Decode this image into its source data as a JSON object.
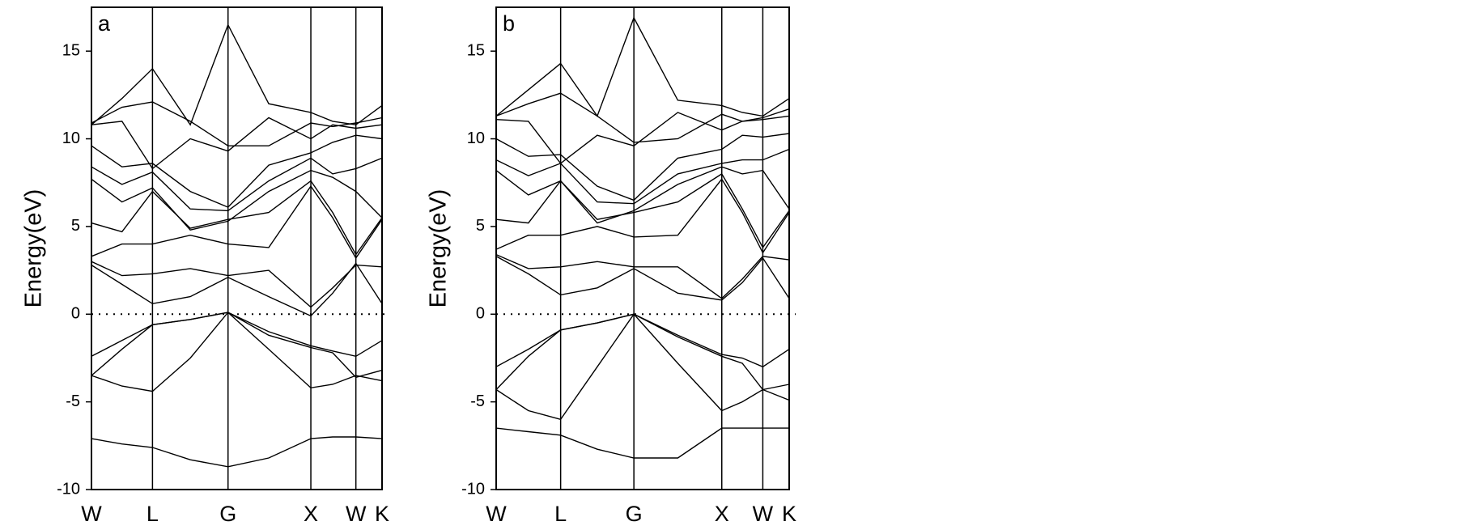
{
  "chart_data": [
    {
      "type": "line",
      "title": "a",
      "ylabel": "Energy(eV)",
      "color": "#000000",
      "xlim": [
        0,
        1
      ],
      "ylim": [
        -10,
        17.5
      ],
      "xticks": [
        {
          "value": 0,
          "label": "W"
        },
        {
          "value": 0.21,
          "label": "L"
        },
        {
          "value": 0.47,
          "label": "G"
        },
        {
          "value": 0.755,
          "label": "X"
        },
        {
          "value": 0.91,
          "label": "W"
        },
        {
          "value": 1,
          "label": "K"
        }
      ],
      "yticks": [
        -10,
        -5,
        0,
        5,
        10,
        15
      ],
      "hline": 0,
      "x": [
        0,
        0.105,
        0.21,
        0.34,
        0.47,
        0.61,
        0.755,
        0.83,
        0.91,
        1
      ],
      "series": [
        {
          "values": [
            -7.1,
            -7.4,
            -7.6,
            -8.3,
            -8.7,
            -8.2,
            -7.1,
            -7.0,
            -7.0,
            -7.1
          ]
        },
        {
          "values": [
            -3.5,
            -4.1,
            -4.4,
            -2.5,
            0.1,
            -2.0,
            -4.2,
            -4.0,
            -3.5,
            -3.8
          ]
        },
        {
          "values": [
            -3.5,
            -2.0,
            -0.6,
            -0.3,
            0.1,
            -1.0,
            -1.8,
            -2.1,
            -2.4,
            -1.5
          ]
        },
        {
          "values": [
            -2.4,
            -1.5,
            -0.6,
            -0.3,
            0.1,
            -1.2,
            -1.9,
            -2.2,
            -3.6,
            -3.2
          ]
        },
        {
          "values": [
            2.8,
            1.7,
            0.6,
            1.0,
            2.1,
            1.0,
            -0.1,
            1.2,
            2.9,
            0.6
          ]
        },
        {
          "values": [
            3.0,
            2.2,
            2.3,
            2.6,
            2.2,
            2.5,
            0.4,
            1.5,
            2.8,
            2.7
          ]
        },
        {
          "values": [
            3.3,
            4.0,
            4.0,
            4.5,
            4.0,
            3.8,
            7.3,
            5.5,
            3.2,
            5.4
          ]
        },
        {
          "values": [
            5.2,
            4.7,
            7.0,
            4.9,
            5.4,
            5.8,
            7.6,
            5.8,
            3.4,
            5.5
          ]
        },
        {
          "values": [
            7.7,
            6.4,
            7.2,
            4.8,
            5.3,
            7.0,
            8.2,
            7.8,
            7.0,
            5.5
          ]
        },
        {
          "values": [
            8.4,
            7.4,
            8.1,
            6.0,
            5.9,
            7.6,
            8.9,
            8.0,
            8.3,
            8.9
          ]
        },
        {
          "values": [
            9.6,
            8.4,
            8.6,
            7.0,
            6.1,
            8.5,
            9.2,
            9.8,
            10.2,
            10.0
          ]
        },
        {
          "values": [
            10.8,
            11.0,
            8.3,
            10.0,
            9.3,
            11.2,
            10.0,
            10.8,
            10.6,
            10.8
          ]
        },
        {
          "values": [
            10.9,
            11.8,
            12.1,
            11.0,
            9.6,
            9.6,
            10.9,
            10.7,
            10.9,
            11.2
          ]
        },
        {
          "values": [
            10.8,
            12.3,
            14.0,
            10.8,
            16.5,
            12.0,
            11.5,
            11.0,
            10.8,
            11.9
          ]
        }
      ]
    },
    {
      "type": "line",
      "title": "b",
      "ylabel": "Energy(eV)",
      "color": "#000000",
      "xlim": [
        0,
        1
      ],
      "ylim": [
        -10,
        17.5
      ],
      "xticks": [
        {
          "value": 0,
          "label": "W"
        },
        {
          "value": 0.22,
          "label": "L"
        },
        {
          "value": 0.47,
          "label": "G"
        },
        {
          "value": 0.77,
          "label": "X"
        },
        {
          "value": 0.91,
          "label": "W"
        },
        {
          "value": 1,
          "label": "K"
        }
      ],
      "yticks": [
        -10,
        -5,
        0,
        5,
        10,
        15
      ],
      "hline": 0,
      "x": [
        0,
        0.11,
        0.22,
        0.345,
        0.47,
        0.62,
        0.77,
        0.84,
        0.91,
        1
      ],
      "series": [
        {
          "values": [
            -6.5,
            -6.7,
            -6.9,
            -7.7,
            -8.2,
            -8.2,
            -6.5,
            -6.5,
            -6.5,
            -6.5
          ]
        },
        {
          "values": [
            -4.3,
            -5.5,
            -6.0,
            -3.0,
            0.0,
            -2.8,
            -5.5,
            -5.0,
            -4.3,
            -4.9
          ]
        },
        {
          "values": [
            -4.3,
            -2.4,
            -0.9,
            -0.5,
            0.0,
            -1.2,
            -2.3,
            -2.5,
            -3.0,
            -2.0
          ]
        },
        {
          "values": [
            -3.0,
            -2.0,
            -0.9,
            -0.5,
            0.0,
            -1.3,
            -2.4,
            -2.8,
            -4.3,
            -4.0
          ]
        },
        {
          "values": [
            3.3,
            2.3,
            1.1,
            1.5,
            2.6,
            1.2,
            0.8,
            1.8,
            3.2,
            0.9
          ]
        },
        {
          "values": [
            3.4,
            2.6,
            2.7,
            3.0,
            2.7,
            2.7,
            0.9,
            2.0,
            3.3,
            3.1
          ]
        },
        {
          "values": [
            3.7,
            4.5,
            4.5,
            5.0,
            4.4,
            4.5,
            7.7,
            5.8,
            3.5,
            5.8
          ]
        },
        {
          "values": [
            5.4,
            5.2,
            7.6,
            5.4,
            5.8,
            6.4,
            8.0,
            6.0,
            3.8,
            5.9
          ]
        },
        {
          "values": [
            8.2,
            6.8,
            7.6,
            5.2,
            5.9,
            7.4,
            8.4,
            8.0,
            8.2,
            6.0
          ]
        },
        {
          "values": [
            8.8,
            7.9,
            8.6,
            6.4,
            6.3,
            8.0,
            8.6,
            8.8,
            8.8,
            9.4
          ]
        },
        {
          "values": [
            10.0,
            9.0,
            9.1,
            7.3,
            6.5,
            8.9,
            9.4,
            10.2,
            10.1,
            10.3
          ]
        },
        {
          "values": [
            11.1,
            11.0,
            8.6,
            10.2,
            9.6,
            11.5,
            10.5,
            11.0,
            11.1,
            11.3
          ]
        },
        {
          "values": [
            11.3,
            12.0,
            12.6,
            11.3,
            9.8,
            10.0,
            11.4,
            11.0,
            11.2,
            11.7
          ]
        },
        {
          "values": [
            11.3,
            12.8,
            14.3,
            11.3,
            16.9,
            12.2,
            11.9,
            11.5,
            11.3,
            12.3
          ]
        }
      ]
    }
  ]
}
